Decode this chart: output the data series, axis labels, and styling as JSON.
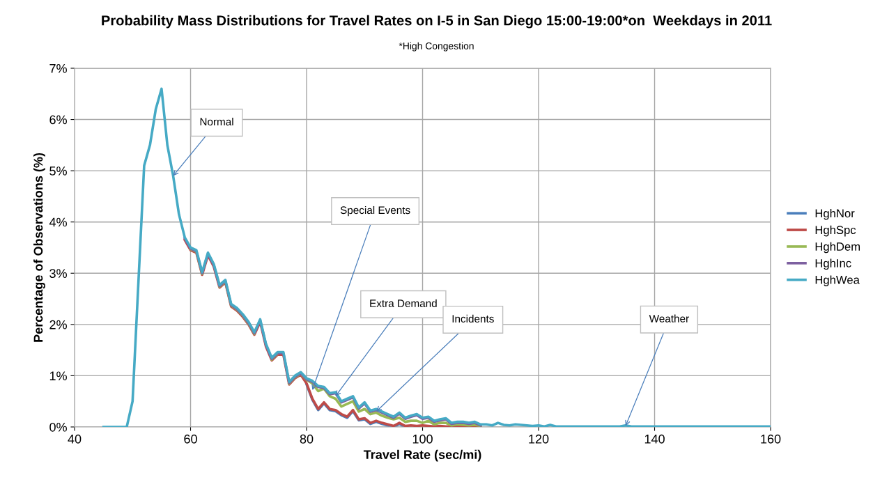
{
  "chart_data": {
    "type": "line",
    "title": "Probability Mass Distributions for Travel Rates on I-5 in San Diego 15:00-19:00*on  Weekdays in 2011",
    "subtitle": "*High Congestion",
    "xlabel": "Travel Rate (sec/mi)",
    "ylabel": "Percentage of Observations (%)",
    "x": [
      45,
      46,
      47,
      48,
      49,
      50,
      51,
      52,
      53,
      54,
      55,
      56,
      57,
      58,
      59,
      60,
      61,
      62,
      63,
      64,
      65,
      66,
      67,
      68,
      69,
      70,
      71,
      72,
      73,
      74,
      75,
      76,
      77,
      78,
      79,
      80,
      81,
      82,
      83,
      84,
      85,
      86,
      87,
      88,
      89,
      90,
      91,
      92,
      93,
      94,
      95,
      96,
      97,
      98,
      99,
      100,
      101,
      102,
      103,
      104,
      105,
      106,
      107,
      108,
      109,
      110,
      111,
      112,
      113,
      114,
      115,
      116,
      117,
      118,
      119,
      120,
      121,
      122,
      123,
      124,
      125,
      126,
      127,
      128,
      129,
      130,
      131,
      132,
      133,
      134,
      135,
      136,
      137,
      138,
      139,
      140,
      141,
      142,
      143,
      144,
      145,
      146,
      147,
      148,
      149,
      150,
      151,
      152,
      153,
      154,
      155,
      156,
      157,
      158,
      159,
      160
    ],
    "series": [
      {
        "name": "HghNor",
        "color": "#4a7ebb",
        "values": [
          null,
          null,
          null,
          null,
          null,
          null,
          null,
          null,
          null,
          null,
          null,
          null,
          null,
          null,
          null,
          null,
          null,
          null,
          null,
          null,
          null,
          null,
          null,
          null,
          null,
          null,
          null,
          null,
          null,
          null,
          null,
          null,
          null,
          null,
          null,
          0.83,
          0.53,
          0.33,
          0.46,
          0.33,
          0.31,
          0.23,
          0.18,
          0.31,
          0.13,
          0.15,
          0.06,
          0.1,
          0.06,
          0.03,
          0,
          0.06,
          0,
          null,
          null,
          null,
          null,
          null,
          null,
          null,
          null,
          null,
          null,
          null,
          null,
          null,
          null,
          null,
          null,
          null,
          null,
          null,
          null,
          null,
          null,
          null,
          null,
          null,
          null,
          null,
          null,
          null,
          null,
          null,
          null,
          null,
          null,
          null,
          null,
          null,
          null,
          null,
          null,
          null,
          null,
          null,
          null,
          null,
          null,
          null,
          null,
          null,
          null,
          null,
          null,
          null,
          null,
          null,
          null,
          null,
          null,
          null,
          null,
          null,
          null,
          null
        ]
      },
      {
        "name": "HghSpc",
        "color": "#be4b48",
        "values": [
          null,
          null,
          null,
          null,
          null,
          null,
          null,
          null,
          null,
          null,
          null,
          null,
          null,
          null,
          3.65,
          3.45,
          3.4,
          2.97,
          3.35,
          3.13,
          2.72,
          2.82,
          2.35,
          2.27,
          2.15,
          2.0,
          1.8,
          2.05,
          1.57,
          1.3,
          1.41,
          1.41,
          0.83,
          0.95,
          1.02,
          0.85,
          0.55,
          0.35,
          0.48,
          0.35,
          0.33,
          0.25,
          0.2,
          0.33,
          0.15,
          0.17,
          0.08,
          0.12,
          0.08,
          0.05,
          0.02,
          0.08,
          0.02,
          0.03,
          0.02,
          0.03,
          0.02,
          0.01,
          0.02,
          0.01,
          0.01,
          0.01,
          0.01,
          0.01,
          0.01,
          0.01,
          null,
          null,
          null,
          null,
          null,
          null,
          null,
          null,
          null,
          null,
          null,
          null,
          null,
          null,
          null,
          null,
          null,
          null,
          null,
          null,
          null,
          null,
          null,
          null,
          null,
          null,
          null,
          null,
          null,
          null,
          null,
          null,
          null,
          null,
          null,
          null,
          null,
          null,
          null,
          null,
          null,
          null,
          null,
          null,
          null,
          null,
          null,
          null,
          null,
          null
        ]
      },
      {
        "name": "HghDem",
        "color": "#98b954",
        "values": [
          null,
          null,
          null,
          null,
          null,
          null,
          null,
          null,
          null,
          null,
          null,
          null,
          null,
          null,
          null,
          3.47,
          3.42,
          2.99,
          null,
          null,
          2.74,
          2.84,
          2.37,
          2.29,
          2.17,
          2.02,
          1.82,
          null,
          null,
          1.32,
          1.43,
          null,
          0.85,
          0.97,
          1.04,
          0.92,
          0.85,
          0.7,
          0.75,
          0.6,
          0.55,
          0.4,
          0.45,
          0.5,
          0.3,
          0.35,
          0.25,
          0.28,
          0.22,
          0.18,
          0.15,
          0.18,
          0.1,
          0.12,
          0.12,
          0.08,
          0.12,
          0.05,
          0.08,
          0.08,
          0.03,
          0.05,
          0.04,
          0.03,
          0.04,
          0.02,
          null,
          null,
          null,
          null,
          null,
          null,
          null,
          null,
          null,
          null,
          null,
          null,
          null,
          null,
          null,
          null,
          null,
          null,
          null,
          null,
          null,
          null,
          null,
          null,
          null,
          null,
          null,
          null,
          null,
          null,
          null,
          null,
          null,
          null,
          null,
          null,
          null,
          null,
          null,
          null,
          null,
          null,
          null,
          null,
          null,
          null,
          null,
          null,
          null,
          null
        ]
      },
      {
        "name": "HghInc",
        "color": "#7d60a0",
        "values": [
          null,
          null,
          null,
          null,
          null,
          null,
          null,
          null,
          null,
          null,
          null,
          null,
          null,
          null,
          3.68,
          3.48,
          3.43,
          3.0,
          3.38,
          3.16,
          2.75,
          2.85,
          2.38,
          2.3,
          2.18,
          2.03,
          1.83,
          2.08,
          1.6,
          1.33,
          1.44,
          1.44,
          0.86,
          0.98,
          1.05,
          0.93,
          0.88,
          0.78,
          0.76,
          0.64,
          0.66,
          0.48,
          0.53,
          0.58,
          0.36,
          0.46,
          0.3,
          0.33,
          0.28,
          0.23,
          0.18,
          0.26,
          0.16,
          0.2,
          0.23,
          0.16,
          0.18,
          0.1,
          0.13,
          0.15,
          0.06,
          0.08,
          0.08,
          0.06,
          0.08,
          0.03,
          null,
          null,
          null,
          null,
          null,
          null,
          null,
          null,
          null,
          null,
          null,
          null,
          null,
          null,
          null,
          null,
          null,
          null,
          null,
          null,
          null,
          null,
          null,
          null,
          null,
          null,
          null,
          null,
          null,
          null,
          null,
          null,
          null,
          null,
          null,
          null,
          null,
          null,
          null,
          null,
          null,
          null,
          null,
          null,
          null,
          null,
          null,
          null,
          null,
          null
        ]
      },
      {
        "name": "HghWea",
        "color": "#46aac5",
        "values": [
          0,
          0,
          0,
          0,
          0,
          0.5,
          2.8,
          5.1,
          5.5,
          6.2,
          6.6,
          5.5,
          4.9,
          4.15,
          3.7,
          3.5,
          3.45,
          3.02,
          3.4,
          3.18,
          2.77,
          2.87,
          2.4,
          2.32,
          2.2,
          2.05,
          1.85,
          2.1,
          1.62,
          1.35,
          1.46,
          1.46,
          0.88,
          1.0,
          1.07,
          0.95,
          0.9,
          0.8,
          0.78,
          0.66,
          0.68,
          0.5,
          0.55,
          0.6,
          0.38,
          0.48,
          0.32,
          0.35,
          0.3,
          0.25,
          0.2,
          0.28,
          0.18,
          0.22,
          0.25,
          0.18,
          0.2,
          0.12,
          0.15,
          0.17,
          0.08,
          0.1,
          0.1,
          0.08,
          0.1,
          0.05,
          0.05,
          0.03,
          0.08,
          0.04,
          0.03,
          0.05,
          0.04,
          0.03,
          0.02,
          0.03,
          0.01,
          0.04,
          0.01,
          0.01,
          0.01,
          0.01,
          0.01,
          0.01,
          0.01,
          0.01,
          0.01,
          0.01,
          0.01,
          0.01,
          0.03,
          0.01,
          0.01,
          0.01,
          0.01,
          0.01,
          0.01,
          0.01,
          0.01,
          0.01,
          0.01,
          0.01,
          0.01,
          0.01,
          0.01,
          0.01,
          0.01,
          0.01,
          0.01,
          0.01,
          0.01,
          0.01,
          0.01,
          0.01,
          0.01,
          0.01
        ]
      }
    ],
    "annotations": [
      {
        "text": "Normal",
        "x": 57,
        "y": 4.9
      },
      {
        "text": "Special Events",
        "x": 81,
        "y": 0.72
      },
      {
        "text": "Extra Demand",
        "x": 85,
        "y": 0.6
      },
      {
        "text": "Incidents",
        "x": 92,
        "y": 0.3
      },
      {
        "text": "Weather",
        "x": 135,
        "y": 0.02
      }
    ],
    "xlim": [
      40,
      160
    ],
    "xticks": [
      40,
      60,
      80,
      100,
      120,
      140,
      160
    ],
    "ylim": [
      0,
      7
    ],
    "yticks": [
      {
        "value": 0,
        "label": "0%"
      },
      {
        "value": 1,
        "label": "1%"
      },
      {
        "value": 2,
        "label": "2%"
      },
      {
        "value": 3,
        "label": "3%"
      },
      {
        "value": 4,
        "label": "4%"
      },
      {
        "value": 5,
        "label": "5%"
      },
      {
        "value": 6,
        "label": "6%"
      },
      {
        "value": 7,
        "label": "7%"
      }
    ],
    "grid": true,
    "legend": "right",
    "marker": "none",
    "line_style": "solid"
  }
}
